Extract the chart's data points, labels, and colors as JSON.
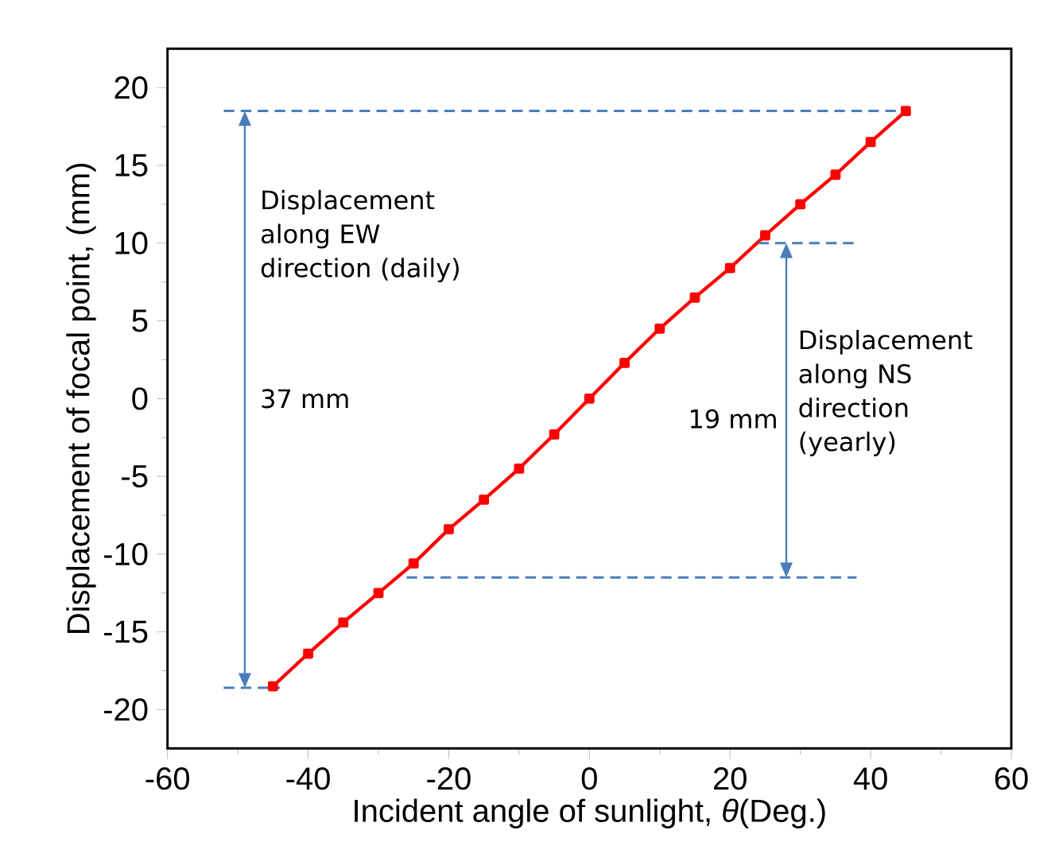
{
  "chart_data": {
    "type": "line",
    "xlabel": "Incident angle of sunlight, *θ*(Deg.)",
    "ylabel": "Displacement of focal point, (mm)",
    "x": [
      -45,
      -40,
      -35,
      -30,
      -25,
      -20,
      -15,
      -10,
      -5,
      0,
      5,
      10,
      15,
      20,
      25,
      30,
      35,
      40,
      45
    ],
    "series": [
      {
        "color": "#ff0000",
        "values": [
          -18.5,
          -16.4,
          -14.4,
          -12.5,
          -10.6,
          -8.4,
          -6.5,
          -4.5,
          -2.3,
          0,
          2.3,
          4.5,
          6.5,
          8.4,
          10.5,
          12.5,
          14.4,
          16.5,
          18.5
        ]
      },
      {
        "color": "#4a7ebb",
        "line_style": "dashed",
        "marker": "none",
        "x": [
          -52,
          45
        ],
        "values": [
          18.5,
          18.5
        ]
      },
      {
        "color": "#4a7ebb",
        "line_style": "dashed",
        "marker": "none",
        "x": [
          -52,
          -44
        ],
        "values": [
          -18.6,
          -18.6
        ]
      },
      {
        "color": "#4a7ebb",
        "line_style": "dashed",
        "marker": "none",
        "x": [
          24,
          38
        ],
        "values": [
          10,
          10
        ]
      },
      {
        "color": "#4a7ebb",
        "line_style": "dashed",
        "marker": "none",
        "x": [
          -26,
          38
        ],
        "values": [
          -11.5,
          -11.5
        ]
      }
    ],
    "marker": "square",
    "line_style": "solid",
    "xlim": [
      -60,
      60
    ],
    "xticks": [
      -60,
      -40,
      -20,
      0,
      20,
      40,
      60
    ],
    "ylim": [
      -22.5,
      22.5
    ],
    "yticks": [
      -20,
      -15,
      -10,
      -5,
      0,
      5,
      10,
      15,
      20
    ],
    "annotations": [
      "Displacement along EW direction (daily)",
      "37 mm",
      "Displacement along NS direction (yearly)",
      "19 mm"
    ]
  }
}
